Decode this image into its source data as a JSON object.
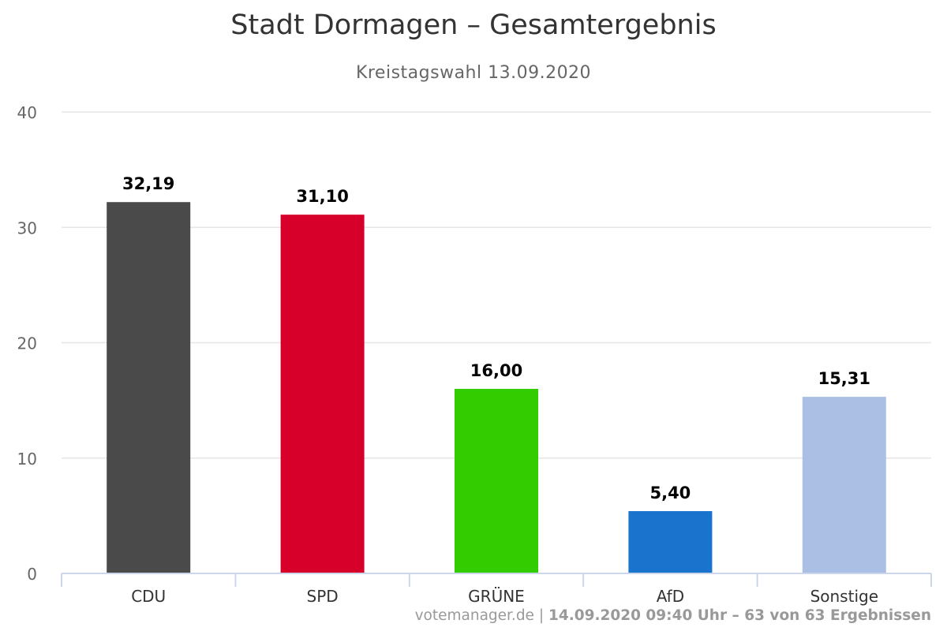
{
  "chart_data": {
    "type": "bar",
    "title": "Stadt Dormagen – Gesamtergebnis",
    "subtitle": "Kreistagswahl 13.09.2020",
    "categories": [
      "CDU",
      "SPD",
      "GRÜNE",
      "AfD",
      "Sonstige"
    ],
    "values": [
      32.19,
      31.1,
      16.0,
      5.4,
      15.31
    ],
    "value_labels": [
      "32,19",
      "31,10",
      "16,00",
      "5,40",
      "15,31"
    ],
    "colors": [
      "#4a4a4a",
      "#d6002b",
      "#33cc00",
      "#1a73cc",
      "#abbfe5"
    ],
    "ylim": [
      0,
      40
    ],
    "yticks": [
      0,
      10,
      20,
      30,
      40
    ],
    "grid": true,
    "legend": "none",
    "xlabel": "",
    "ylabel": ""
  },
  "credit": {
    "site": "votemanager.de",
    "separator": " | ",
    "detail": "14.09.2020 09:40 Uhr – 63 von 63 Ergebnissen"
  }
}
